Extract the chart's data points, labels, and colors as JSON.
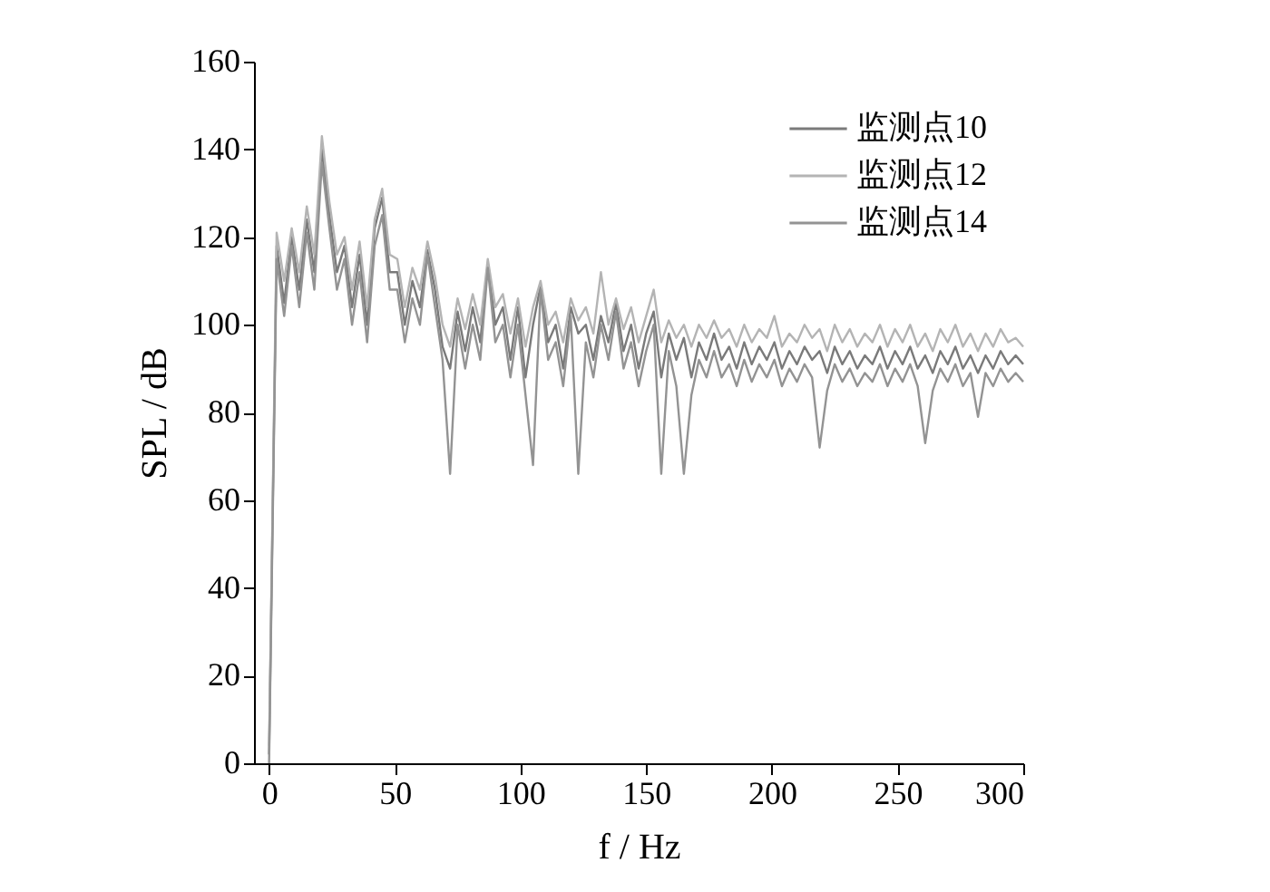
{
  "chart_data": {
    "type": "line",
    "xlabel": "f / Hz",
    "ylabel": "SPL / dB",
    "x": [
      0,
      3,
      6,
      9,
      12,
      15,
      18,
      21,
      24,
      27,
      30,
      33,
      36,
      39,
      42,
      45,
      48,
      51,
      54,
      57,
      60,
      63,
      66,
      69,
      72,
      75,
      78,
      81,
      84,
      87,
      90,
      93,
      96,
      99,
      102,
      105,
      108,
      111,
      114,
      117,
      120,
      123,
      126,
      129,
      132,
      135,
      138,
      141,
      144,
      147,
      150,
      153,
      156,
      159,
      162,
      165,
      168,
      171,
      174,
      177,
      180,
      183,
      186,
      189,
      192,
      195,
      198,
      201,
      204,
      207,
      210,
      213,
      216,
      219,
      222,
      225,
      228,
      231,
      234,
      237,
      240,
      243,
      246,
      249,
      252,
      255,
      258,
      261,
      264,
      267,
      270,
      273,
      276,
      279,
      282,
      285,
      288,
      291,
      294,
      297,
      300
    ],
    "series": [
      {
        "name": "监测点10",
        "color": "#7a7a7a",
        "values": [
          2,
          118,
          105,
          120,
          108,
          124,
          112,
          140,
          125,
          112,
          118,
          104,
          116,
          100,
          122,
          129,
          112,
          112,
          100,
          110,
          104,
          117,
          108,
          95,
          90,
          103,
          94,
          104,
          96,
          114,
          100,
          104,
          92,
          104,
          88,
          100,
          109,
          96,
          100,
          90,
          104,
          98,
          100,
          92,
          102,
          96,
          105,
          94,
          100,
          90,
          98,
          103,
          88,
          98,
          92,
          97,
          88,
          96,
          92,
          98,
          92,
          95,
          90,
          96,
          91,
          95,
          92,
          96,
          90,
          94,
          91,
          95,
          92,
          94,
          89,
          95,
          91,
          94,
          90,
          93,
          91,
          95,
          90,
          94,
          91,
          95,
          90,
          93,
          89,
          94,
          91,
          95,
          90,
          93,
          89,
          93,
          90,
          94,
          91,
          93,
          91
        ]
      },
      {
        "name": "监测点12",
        "color": "#b4b4b4",
        "values": [
          4,
          121,
          110,
          122,
          112,
          127,
          116,
          143,
          128,
          116,
          120,
          108,
          119,
          104,
          124,
          131,
          116,
          115,
          104,
          113,
          108,
          119,
          111,
          100,
          95,
          106,
          99,
          107,
          100,
          115,
          104,
          107,
          98,
          106,
          95,
          104,
          110,
          100,
          103,
          96,
          106,
          101,
          104,
          98,
          112,
          100,
          106,
          99,
          104,
          96,
          102,
          108,
          96,
          101,
          97,
          100,
          95,
          100,
          97,
          101,
          97,
          99,
          95,
          100,
          96,
          99,
          97,
          102,
          95,
          98,
          96,
          100,
          97,
          99,
          94,
          100,
          96,
          99,
          95,
          98,
          96,
          100,
          95,
          99,
          96,
          100,
          95,
          98,
          94,
          99,
          96,
          100,
          95,
          98,
          94,
          98,
          95,
          99,
          96,
          97,
          95
        ]
      },
      {
        "name": "监测点14",
        "color": "#939393",
        "values": [
          0,
          115,
          102,
          118,
          104,
          121,
          108,
          137,
          122,
          108,
          115,
          100,
          112,
          96,
          118,
          125,
          108,
          108,
          96,
          106,
          100,
          116,
          104,
          92,
          66,
          100,
          90,
          100,
          92,
          113,
          96,
          100,
          88,
          100,
          84,
          68,
          108,
          92,
          96,
          86,
          102,
          66,
          96,
          88,
          100,
          92,
          103,
          90,
          96,
          86,
          94,
          100,
          66,
          94,
          86,
          66,
          84,
          92,
          88,
          94,
          88,
          91,
          86,
          92,
          87,
          91,
          88,
          92,
          86,
          90,
          87,
          91,
          88,
          72,
          85,
          91,
          87,
          90,
          86,
          89,
          87,
          91,
          86,
          90,
          87,
          91,
          86,
          73,
          85,
          90,
          87,
          91,
          86,
          89,
          79,
          89,
          86,
          90,
          87,
          89,
          87
        ]
      }
    ],
    "xlim": [
      -6,
      300
    ],
    "ylim": [
      0,
      160
    ],
    "xticks": [
      0,
      50,
      100,
      150,
      200,
      250,
      300
    ],
    "yticks": [
      0,
      20,
      40,
      60,
      80,
      100,
      120,
      140,
      160
    ],
    "grid": false,
    "legend": "top right",
    "line_style": "solid",
    "marker": "none"
  }
}
